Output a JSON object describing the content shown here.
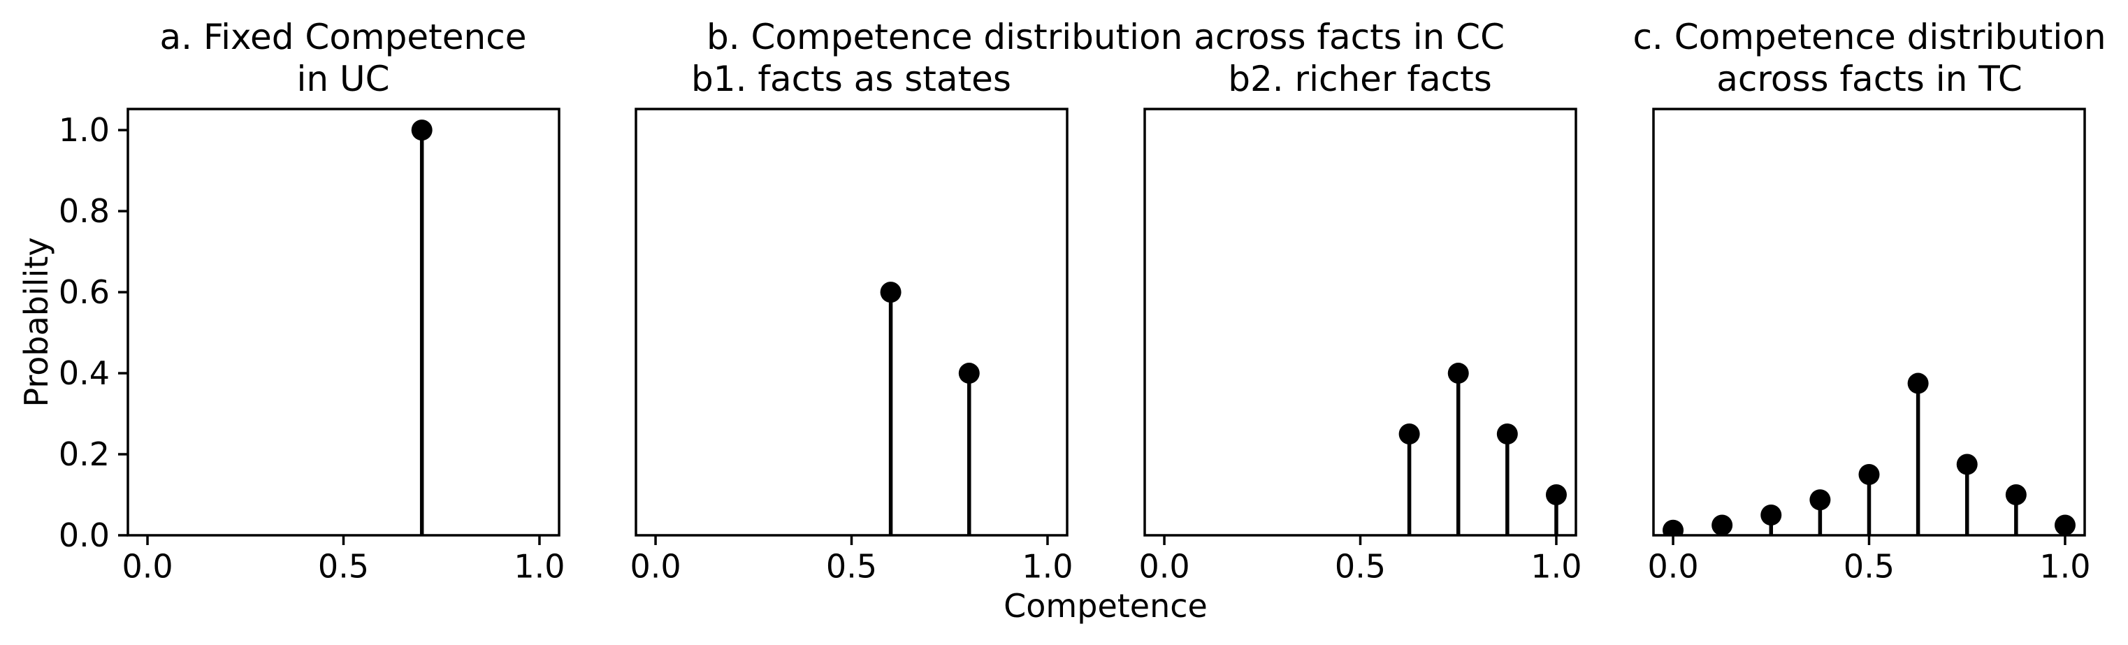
{
  "figure": {
    "background": "#ffffff",
    "ink_color": "#000000"
  },
  "axis_labels": {
    "x": "Competence",
    "y": "Probability"
  },
  "axes": {
    "xlim": [
      -0.05,
      1.05
    ],
    "ylim": [
      0,
      1.052
    ],
    "xtick_values": [
      0.0,
      0.5,
      1.0
    ],
    "xtick_labels": [
      "0.0",
      "0.5",
      "1.0"
    ],
    "ytick_values": [
      0.0,
      0.2,
      0.4,
      0.6,
      0.8,
      1.0
    ],
    "ytick_labels": [
      "0.0",
      "0.2",
      "0.4",
      "0.6",
      "0.8",
      "1.0"
    ],
    "grid": false,
    "legend": "none"
  },
  "chart_data": [
    {
      "id": "a",
      "type": "stem",
      "title_lines": [
        "a. Fixed Competence",
        "in UC"
      ],
      "x": [
        0.7
      ],
      "y": [
        1.0
      ],
      "show_ytick_labels": true
    },
    {
      "id": "b1",
      "type": "stem",
      "group_title": "b. Competence distribution across facts in CC",
      "title_lines": [
        "b1. facts as states"
      ],
      "x": [
        0.6,
        0.8
      ],
      "y": [
        0.6,
        0.4
      ],
      "show_ytick_labels": false
    },
    {
      "id": "b2",
      "type": "stem",
      "title_lines": [
        "b2. richer facts"
      ],
      "x": [
        0.625,
        0.75,
        0.875,
        1.0
      ],
      "y": [
        0.25,
        0.4,
        0.25,
        0.1
      ],
      "show_ytick_labels": false
    },
    {
      "id": "c",
      "type": "stem",
      "title_lines": [
        "c. Competence distribution",
        "across facts in TC"
      ],
      "x": [
        0.0,
        0.125,
        0.25,
        0.375,
        0.5,
        0.625,
        0.75,
        0.875,
        1.0
      ],
      "y": [
        0.0125,
        0.025,
        0.05,
        0.0875,
        0.15,
        0.375,
        0.175,
        0.1,
        0.025
      ],
      "show_ytick_labels": false
    }
  ]
}
